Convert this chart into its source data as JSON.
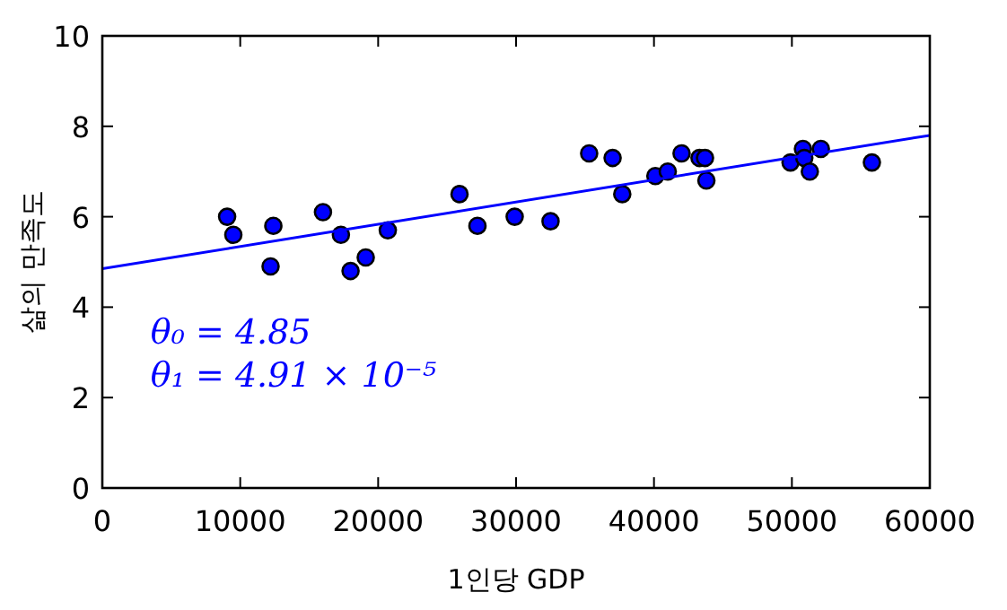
{
  "chart_data": {
    "type": "scatter",
    "xlabel": "1인당 GDP",
    "ylabel": "삶의 만족도",
    "xlim": [
      0,
      60000
    ],
    "xticks": [
      0,
      10000,
      20000,
      30000,
      40000,
      50000,
      60000
    ],
    "ylim": [
      0,
      10
    ],
    "yticks": [
      0,
      2,
      4,
      6,
      8,
      10
    ],
    "grid": false,
    "series": [
      {
        "marker": "circle",
        "color": "#0000ff",
        "x": [
          9050,
          9500,
          12200,
          12400,
          16000,
          17300,
          18000,
          19100,
          20700,
          25900,
          27200,
          29900,
          32500,
          35300,
          37000,
          37700,
          40100,
          41000,
          42000,
          43300,
          43700,
          43800,
          49900,
          50800,
          50900,
          51300,
          52100,
          55800
        ],
        "values": [
          6.0,
          5.6,
          4.9,
          5.8,
          6.1,
          5.6,
          4.8,
          5.1,
          5.7,
          6.5,
          5.8,
          6.0,
          5.9,
          7.4,
          7.3,
          6.5,
          6.9,
          7.0,
          7.4,
          7.3,
          7.3,
          6.8,
          7.2,
          7.5,
          7.3,
          7.0,
          7.5,
          7.2
        ]
      },
      {
        "type": "line",
        "color": "#0000ff",
        "x": [
          0,
          60000
        ],
        "values": [
          4.85,
          7.8
        ]
      }
    ],
    "annotations": [
      "θ₀ = 4.85",
      "θ₁ = 4.91 × 10⁻⁵"
    ]
  }
}
